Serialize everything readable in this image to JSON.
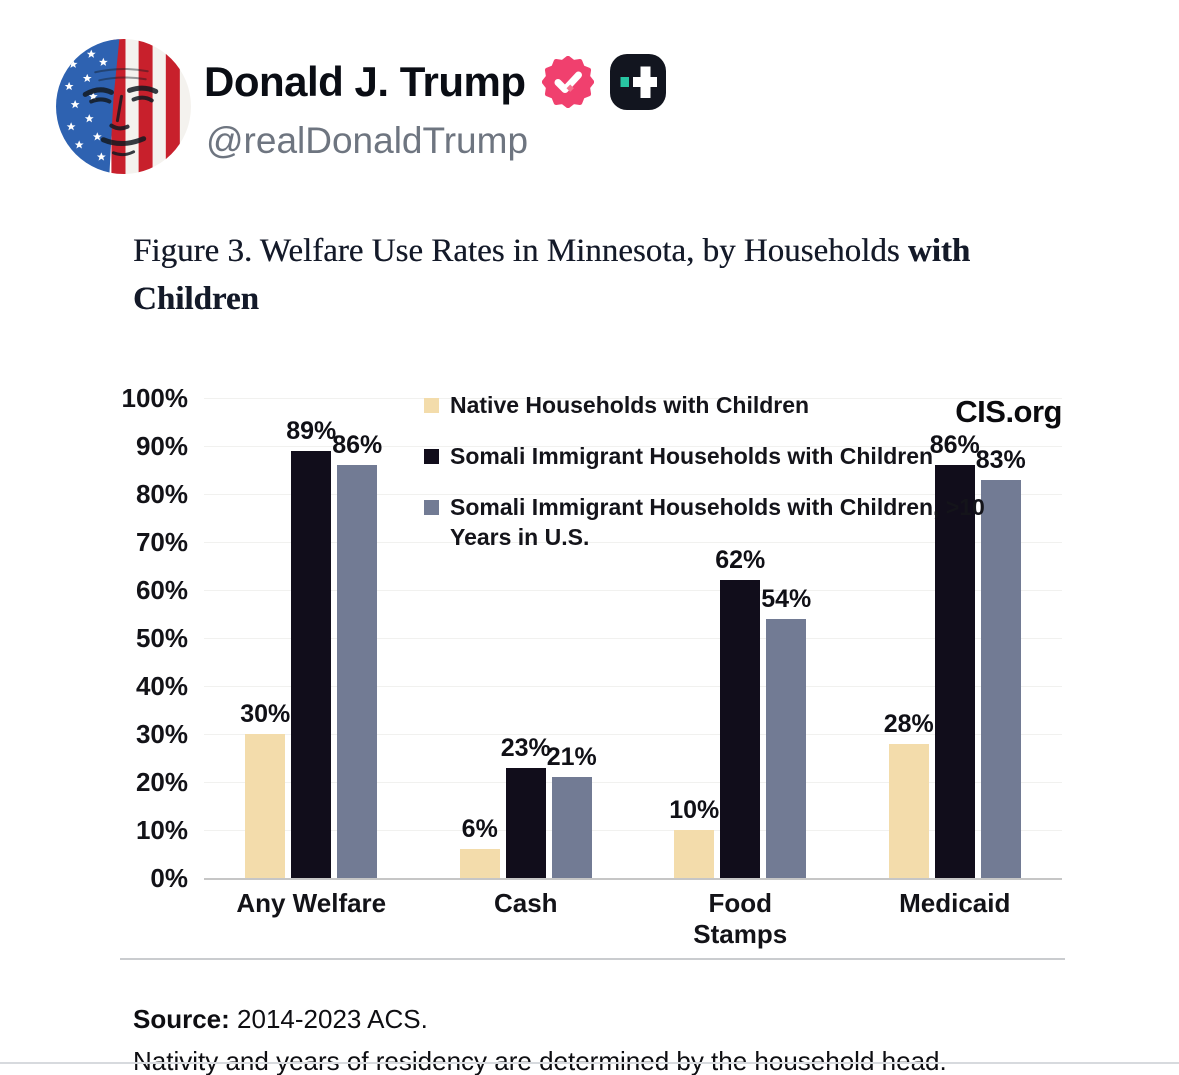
{
  "theme": {
    "verified_pink": "#f0406e",
    "verified_pink_soft": "#f5748f",
    "truth_badge_bg": "#12151f",
    "truth_badge_teal": "#28c5a2"
  },
  "post": {
    "author": "Donald J. Trump",
    "handle": "@realDonaldTrump",
    "verified_badge_icon": "verified-checkmark-seal",
    "truth_badge_icon": "truth-social-plus"
  },
  "figure": {
    "title_regular": "Figure 3. Welfare Use Rates in Minnesota, by Households",
    "title_bold": "with Children",
    "watermark": "CIS.org",
    "source_label": "Source:",
    "source_value": "2014-2023 ACS.",
    "source_note": "Nativity and years of residency are determined by the household head."
  },
  "chart_data": {
    "type": "bar",
    "title": "Figure 3. Welfare Use Rates in Minnesota, by Households with Children",
    "categories": [
      "Any Welfare",
      "Cash",
      "Food Stamps",
      "Medicaid"
    ],
    "series": [
      {
        "name": "Native Households with Children",
        "color": "#f3dcab",
        "values": [
          30,
          6,
          10,
          28
        ]
      },
      {
        "name": "Somali Immigrant Households with Children",
        "color": "#110d1b",
        "values": [
          89,
          23,
          62,
          86
        ]
      },
      {
        "name": "Somali Immigrant Households with Children, >10\nYears in U.S.",
        "color": "#727b94",
        "values": [
          86,
          21,
          54,
          83
        ]
      }
    ],
    "xlabel": "",
    "ylabel": "",
    "ylim": [
      0,
      100
    ],
    "yticks": [
      "100%",
      "90%",
      "80%",
      "70%",
      "60%",
      "50%",
      "40%",
      "30%",
      "20%",
      "10%",
      "0%"
    ],
    "value_suffix": "%",
    "grid": true,
    "legend_position": "inside-top-left"
  }
}
